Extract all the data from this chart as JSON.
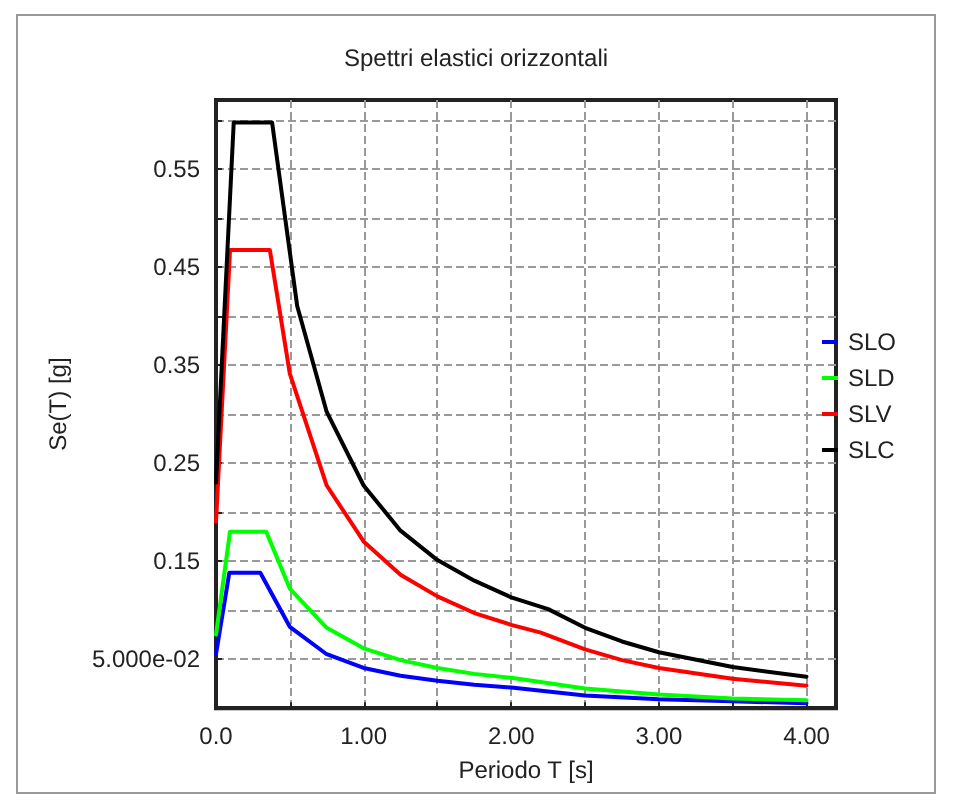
{
  "chart_data": {
    "type": "line",
    "title": "Spettri elastici orizzontali",
    "xlabel": "Periodo T [s]",
    "ylabel": "Se(T) [g]",
    "xlim": [
      0,
      4.2
    ],
    "xticks": [
      {
        "value": 0,
        "label": "0.0"
      },
      {
        "value": 0.5,
        "label": null
      },
      {
        "value": 1,
        "label": "1.00"
      },
      {
        "value": 1.5,
        "label": null
      },
      {
        "value": 2,
        "label": "2.00"
      },
      {
        "value": 2.5,
        "label": null
      },
      {
        "value": 3,
        "label": "3.00"
      },
      {
        "value": 3.5,
        "label": null
      },
      {
        "value": 4,
        "label": "4.00"
      }
    ],
    "ylim": [
      0,
      0.62
    ],
    "yticks": [
      {
        "value": 0.05,
        "label": "5.000e-02"
      },
      {
        "value": 0.1,
        "label": null
      },
      0.15,
      {
        "value": 0.2,
        "label": null
      },
      0.25,
      {
        "value": 0.3,
        "label": null
      },
      0.35,
      {
        "value": 0.4,
        "label": null
      },
      0.45,
      {
        "value": 0.5,
        "label": null
      },
      0.55,
      {
        "value": 0.6,
        "label": null
      }
    ],
    "grid": true,
    "legend": "right",
    "marker": "none",
    "line_style": "solid",
    "series": [
      {
        "name": "SLO",
        "color": "#0000ff",
        "x": [
          0,
          0.09,
          0.3,
          0.5,
          0.75,
          1,
          1.25,
          1.5,
          1.75,
          2,
          2.5,
          3,
          3.5,
          4
        ],
        "values": [
          0.055,
          0.138,
          0.138,
          0.083,
          0.055,
          0.041,
          0.033,
          0.028,
          0.024,
          0.021,
          0.013,
          0.009,
          0.007,
          0.005
        ]
      },
      {
        "name": "SLD",
        "color": "#00ff00",
        "x": [
          0,
          0.095,
          0.34,
          0.5,
          0.75,
          1,
          1.25,
          1.5,
          1.75,
          2,
          2.5,
          3,
          3.5,
          4
        ],
        "values": [
          0.075,
          0.18,
          0.18,
          0.122,
          0.082,
          0.061,
          0.049,
          0.041,
          0.035,
          0.031,
          0.02,
          0.014,
          0.01,
          0.008
        ]
      },
      {
        "name": "SLV",
        "color": "#ff0000",
        "x": [
          0,
          0.095,
          0.365,
          0.5,
          0.75,
          1,
          1.25,
          1.5,
          1.75,
          2,
          2.2,
          2.5,
          2.75,
          3,
          3.5,
          4
        ],
        "values": [
          0.19,
          0.467,
          0.467,
          0.341,
          0.227,
          0.17,
          0.136,
          0.114,
          0.097,
          0.085,
          0.077,
          0.06,
          0.049,
          0.041,
          0.03,
          0.023
        ]
      },
      {
        "name": "SLC",
        "color": "#000000",
        "x": [
          0,
          0.12,
          0.38,
          0.55,
          0.75,
          1,
          1.25,
          1.5,
          1.75,
          2,
          2.25,
          2.5,
          2.75,
          3,
          3.5,
          4
        ],
        "values": [
          0.23,
          0.597,
          0.597,
          0.41,
          0.302,
          0.227,
          0.181,
          0.151,
          0.13,
          0.113,
          0.101,
          0.082,
          0.068,
          0.057,
          0.042,
          0.032
        ]
      }
    ]
  }
}
